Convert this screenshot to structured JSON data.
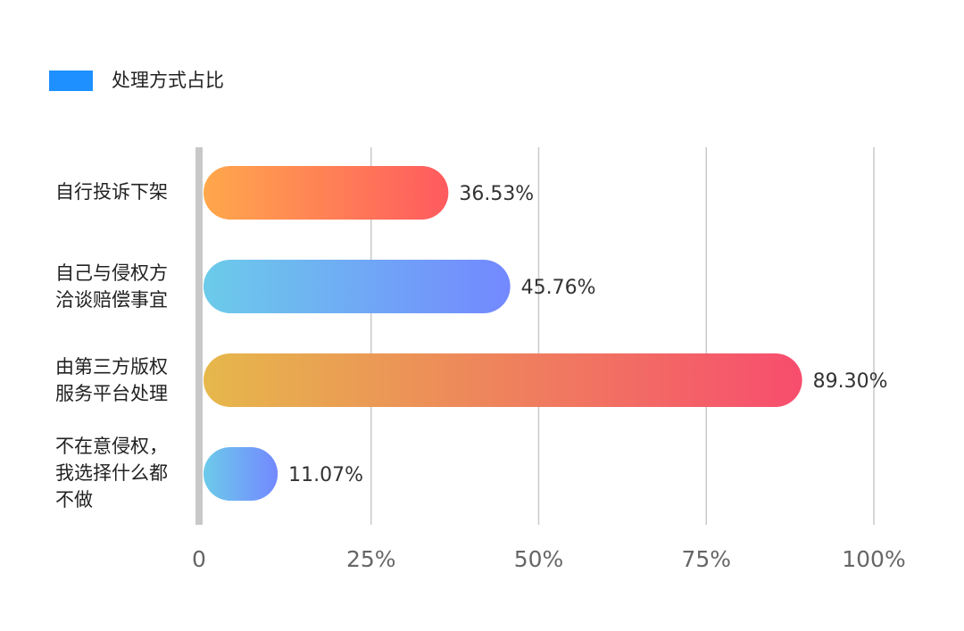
{
  "legend": {
    "label": "处理方式占比",
    "color": "#1e90ff"
  },
  "chart_data": {
    "type": "bar",
    "orientation": "horizontal",
    "title": "",
    "xlabel": "",
    "ylabel": "",
    "xlim": [
      0,
      100
    ],
    "grid": true,
    "legend_position": "top-left",
    "x_ticks": [
      "0",
      "25%",
      "50%",
      "75%",
      "100%"
    ],
    "categories": [
      "自行投诉下架",
      "自己与侵权方\n洽谈赔偿事宜",
      "由第三方版权\n服务平台处理",
      "不在意侵权，\n我选择什么都\n不做"
    ],
    "series": [
      {
        "name": "处理方式占比",
        "values": [
          36.53,
          45.76,
          89.3,
          11.07
        ]
      }
    ],
    "data_labels": [
      "36.53%",
      "45.76%",
      "89.30%",
      "11.07%"
    ],
    "bar_gradients": [
      [
        "#ffa84c",
        "#ff5a5f"
      ],
      [
        "#6ccbea",
        "#7388ff"
      ],
      [
        "#e6b84b",
        "#f74d6e"
      ],
      [
        "#6ccbea",
        "#7388ff"
      ]
    ]
  }
}
